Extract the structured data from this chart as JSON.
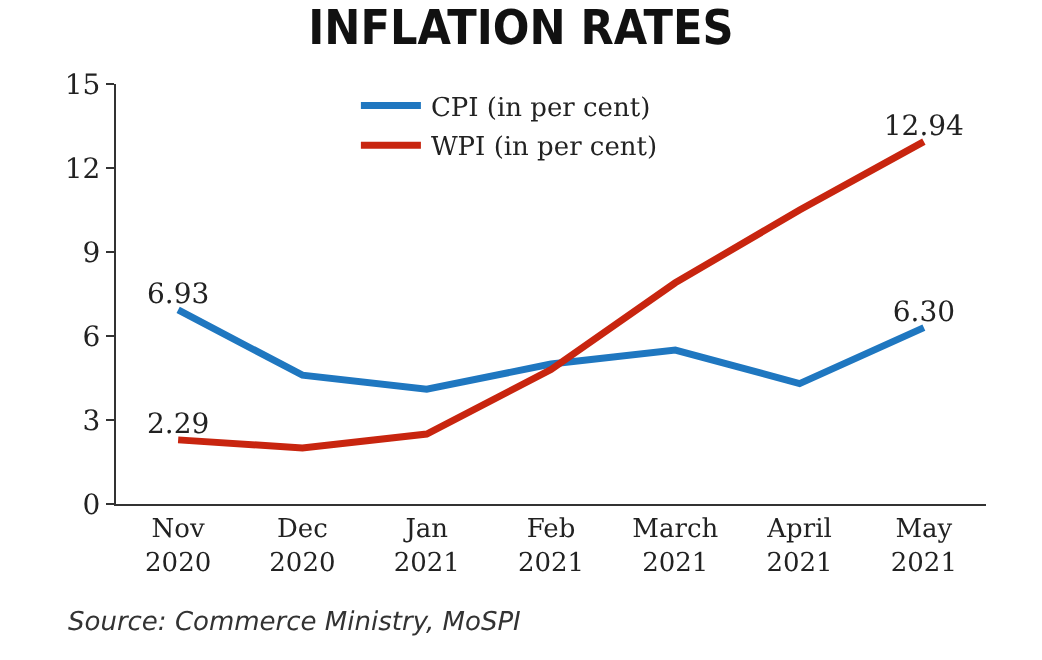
{
  "chart_data": {
    "type": "line",
    "title": "INFLATION RATES",
    "categories": [
      "Nov 2020",
      "Dec 2020",
      "Jan 2021",
      "Feb 2021",
      "March 2021",
      "April 2021",
      "May 2021"
    ],
    "series": [
      {
        "name": "CPI (in per cent)",
        "color": "#1f77c0",
        "values": [
          6.93,
          4.6,
          4.1,
          5.0,
          5.5,
          4.3,
          6.3
        ],
        "value_labels": [
          "6.93",
          null,
          null,
          null,
          null,
          null,
          "6.30"
        ]
      },
      {
        "name": "WPI (in per cent)",
        "color": "#c8250f",
        "values": [
          2.29,
          2.0,
          2.5,
          4.8,
          7.9,
          10.5,
          12.94
        ],
        "value_labels": [
          "2.29",
          null,
          null,
          null,
          null,
          null,
          "12.94"
        ]
      }
    ],
    "ylim": [
      0,
      15
    ],
    "yticks": [
      0,
      3,
      6,
      9,
      12,
      15
    ],
    "grid": false,
    "legend": "top",
    "marker": "none",
    "line_style": "solid",
    "annotations": [
      "Source: Commerce Ministry, MoSPI"
    ]
  }
}
